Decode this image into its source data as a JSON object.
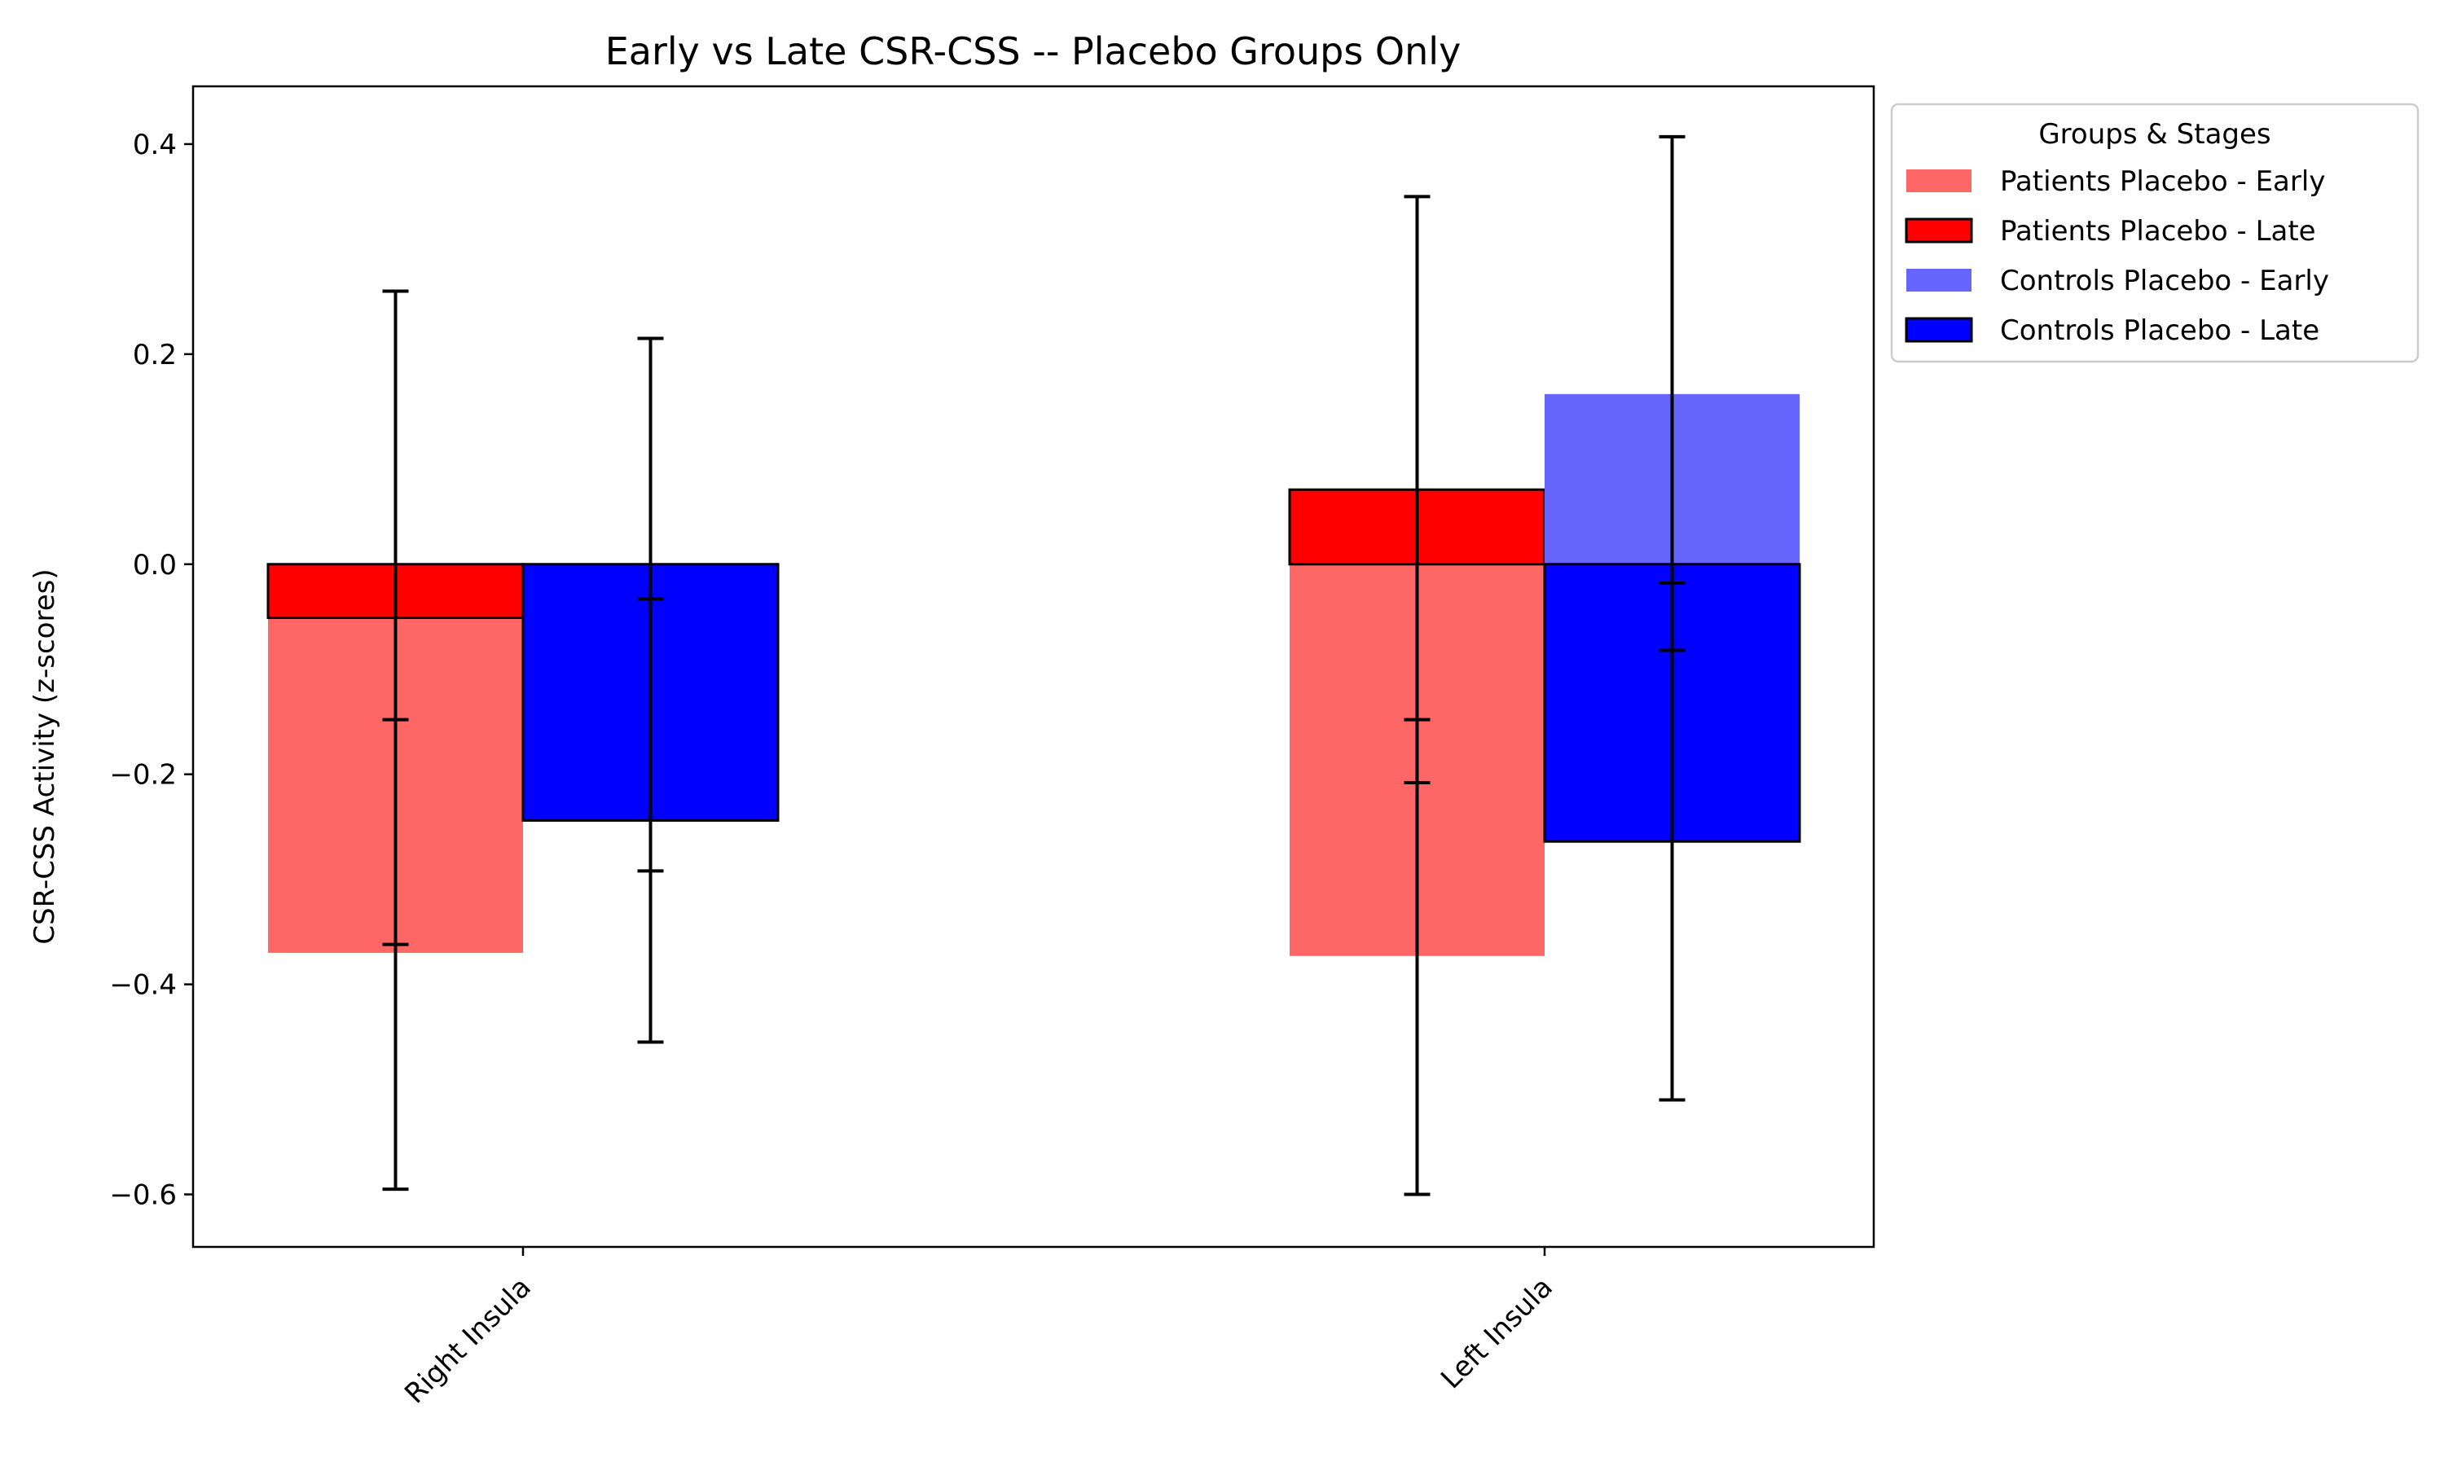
{
  "chart_data": {
    "type": "bar",
    "title": "Early vs Late CSR-CSS -- Placebo Groups Only",
    "xlabel": "",
    "ylabel": "CSR-CSS Activity (z-scores)",
    "categories": [
      "Right Insula",
      "Left Insula"
    ],
    "ylim": [
      -0.65,
      0.455
    ],
    "yticks": [
      0.4,
      0.2,
      0.0,
      -0.2,
      -0.4,
      -0.6
    ],
    "ytick_labels": [
      "0.4",
      "0.2",
      "0.0",
      "−0.2",
      "−0.4",
      "−0.6"
    ],
    "grid": false,
    "legend_title": "Groups & Stages",
    "legend_position": "outside-top-right",
    "series": [
      {
        "name": "Patients Placebo - Early",
        "color": "#ff6666",
        "edge": false,
        "slot": 0,
        "values": [
          -0.37,
          -0.373
        ],
        "err_low": [
          -0.595,
          -0.6
        ],
        "err_high": [
          -0.148,
          -0.148
        ]
      },
      {
        "name": "Patients Placebo - Late",
        "color": "#ff0000",
        "edge": true,
        "slot": 0,
        "values": [
          -0.051,
          0.071
        ],
        "err_low": [
          -0.362,
          -0.208
        ],
        "err_high": [
          0.26,
          0.35
        ]
      },
      {
        "name": "Controls Placebo - Early",
        "color": "#6666ff",
        "edge": false,
        "slot": 1,
        "values": [
          -0.037,
          0.162
        ],
        "err_low": [
          -0.292,
          -0.082
        ],
        "err_high": [
          0.215,
          0.407
        ]
      },
      {
        "name": "Controls Placebo - Late",
        "color": "#0000ff",
        "edge": true,
        "slot": 1,
        "values": [
          -0.244,
          -0.264
        ],
        "err_low": [
          -0.455,
          -0.51
        ],
        "err_high": [
          -0.033,
          -0.018
        ]
      }
    ]
  }
}
